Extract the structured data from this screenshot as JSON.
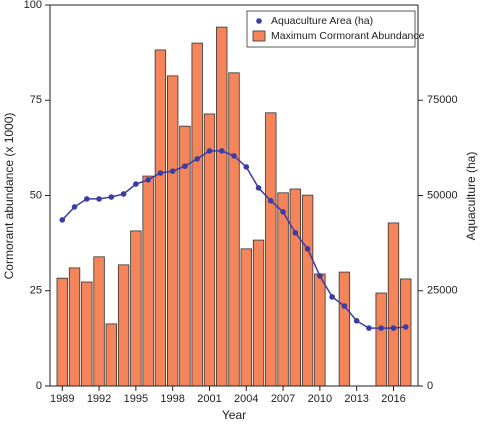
{
  "chart_data": {
    "type": "bar",
    "xlabel": "Year",
    "ylabel": "Cormorant abundance (x 1000)",
    "y2label": "Aquaculture (ha)",
    "x": [
      1989,
      1990,
      1991,
      1992,
      1993,
      1994,
      1995,
      1996,
      1997,
      1998,
      1999,
      2000,
      2001,
      2002,
      2003,
      2004,
      2005,
      2006,
      2007,
      2008,
      2009,
      2010,
      2011,
      2012,
      2013,
      2014,
      2015,
      2016,
      2017
    ],
    "series": [
      {
        "name": "Aquaculture Area (ha)",
        "type": "line",
        "axis": "y2",
        "color": "#3b3ba6",
        "values": [
          43600,
          47000,
          49100,
          49100,
          49600,
          50400,
          53000,
          54100,
          55900,
          56400,
          57700,
          59600,
          61700,
          61700,
          60400,
          57500,
          52000,
          48600,
          45700,
          40200,
          36000,
          28900,
          23400,
          21000,
          17100,
          15200,
          15200,
          15200,
          15500
        ]
      },
      {
        "name": "Maximum Cormorant Abundance",
        "type": "bar",
        "color": "#f4855a",
        "values": [
          28.3,
          31,
          27.3,
          33.9,
          16.3,
          31.8,
          40.7,
          55.1,
          88.2,
          81.4,
          68.2,
          90,
          71.4,
          94.2,
          82.2,
          36,
          38.3,
          71.7,
          50.7,
          51.7,
          50.1,
          29.4,
          null,
          29.9,
          null,
          null,
          24.4,
          42.8,
          28.1
        ]
      }
    ],
    "xlim": [
      1988,
      2018
    ],
    "xticks": [
      1989,
      1992,
      1995,
      1998,
      2001,
      2004,
      2007,
      2010,
      2013,
      2016
    ],
    "ylim": [
      0,
      100
    ],
    "yticks": [
      0,
      25,
      50,
      75,
      100
    ],
    "y2lim": [
      0,
      100000
    ],
    "y2ticks": [
      0,
      25000,
      50000,
      75000
    ],
    "legend": "upper right"
  }
}
